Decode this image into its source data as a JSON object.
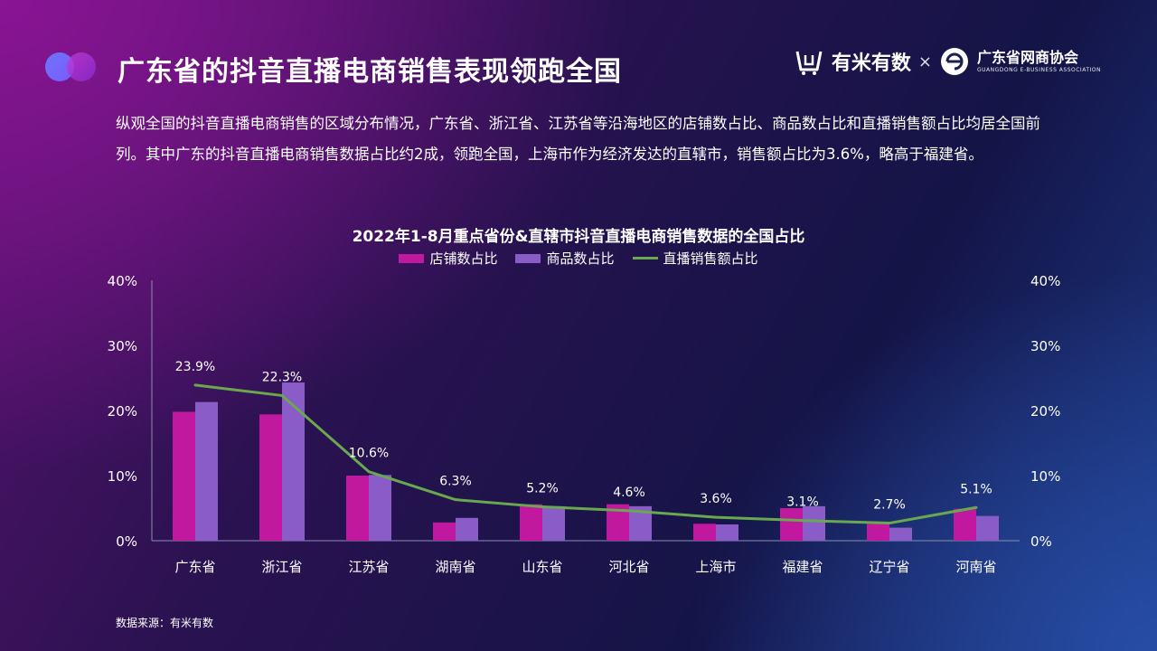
{
  "header": {
    "title": "广东省的抖音直播电商销售表现领跑全国",
    "logo_primary": "有米有数",
    "logo_separator": "×",
    "logo_secondary": "广东省网商协会",
    "logo_secondary_sub": "GUANGDONG E-BUSINESS ASSOCIATION"
  },
  "summary": "纵观全国的抖音直播电商销售的区域分布情况，广东省、浙江省、江苏省等沿海地区的店铺数占比、商品数占比和直播销售额占比均居全国前列。其中广东的抖音直播电商销售数据占比约2成，领跑全国，上海市作为经济发达的直辖市，销售额占比为3.6%，略高于福建省。",
  "source": "数据来源：有米有数",
  "colors": {
    "store": "#c0189e",
    "product": "#8a5cc8",
    "sales": "#6aa84f"
  },
  "chart_data": {
    "type": "bar",
    "title": "2022年1-8月重点省份&直辖市抖音直播电商销售数据的全国占比",
    "categories": [
      "广东省",
      "浙江省",
      "江苏省",
      "湖南省",
      "山东省",
      "河北省",
      "上海市",
      "福建省",
      "辽宁省",
      "河南省"
    ],
    "series": [
      {
        "name": "店铺数占比",
        "kind": "bar",
        "values": [
          19.8,
          19.4,
          10.0,
          2.8,
          5.6,
          5.6,
          2.6,
          5.0,
          2.6,
          4.9
        ]
      },
      {
        "name": "商品数占比",
        "kind": "bar",
        "values": [
          21.3,
          24.3,
          10.1,
          3.5,
          5.3,
          5.3,
          2.5,
          5.3,
          2.0,
          3.8
        ]
      },
      {
        "name": "直播销售额占比",
        "kind": "line",
        "values": [
          23.9,
          22.3,
          10.6,
          6.3,
          5.2,
          4.6,
          3.6,
          3.1,
          2.7,
          5.1
        ],
        "labels": [
          "23.9%",
          "22.3%",
          "10.6%",
          "6.3%",
          "5.2%",
          "4.6%",
          "3.6%",
          "3.1%",
          "2.7%",
          "5.1%"
        ]
      }
    ],
    "ylim": [
      0,
      40
    ],
    "yticks": [
      "0%",
      "10%",
      "20%",
      "30%",
      "40%"
    ],
    "y2ticks": [
      "0%",
      "10%",
      "20%",
      "30%",
      "40%"
    ],
    "xlabel": "",
    "ylabel": "",
    "grid": false,
    "legend_position": "top"
  }
}
